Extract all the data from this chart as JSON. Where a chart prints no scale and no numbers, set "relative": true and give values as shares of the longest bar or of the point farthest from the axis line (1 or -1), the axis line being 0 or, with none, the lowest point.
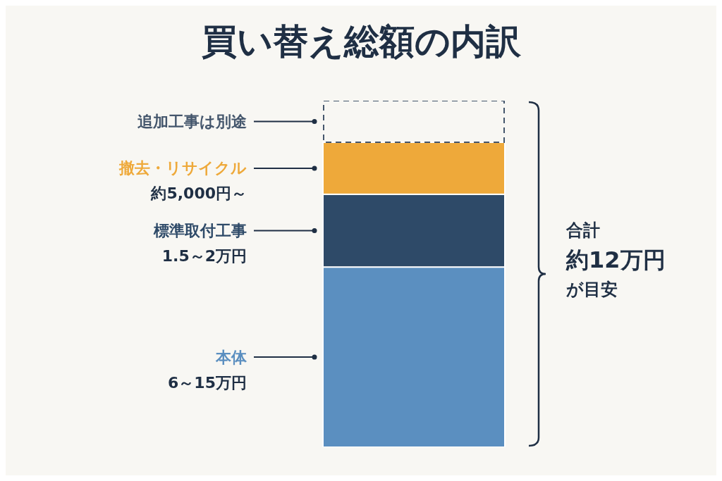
{
  "chart_data": {
    "type": "bar",
    "title": "買い替え総額の内訳",
    "categories": [
      null
    ],
    "stacked": true,
    "relative": true,
    "series": [
      {
        "name": "本体",
        "color": "#5b8fc0",
        "values": [
          0.52
        ]
      },
      {
        "name": "標準取付工事",
        "color": "#2e4a68",
        "values": [
          0.21
        ]
      },
      {
        "name": "撤去・リサイクル",
        "color": "#eea93a",
        "values": [
          0.15
        ]
      },
      {
        "name": "追加工事は別途",
        "color": "#44566c",
        "values": [
          0.12
        ],
        "line_style": "dashed"
      }
    ],
    "annotations": [
      "6～15万円",
      "1.5～2万円",
      "約5,000円～",
      "合計",
      "約12万円",
      "が目安"
    ]
  }
}
